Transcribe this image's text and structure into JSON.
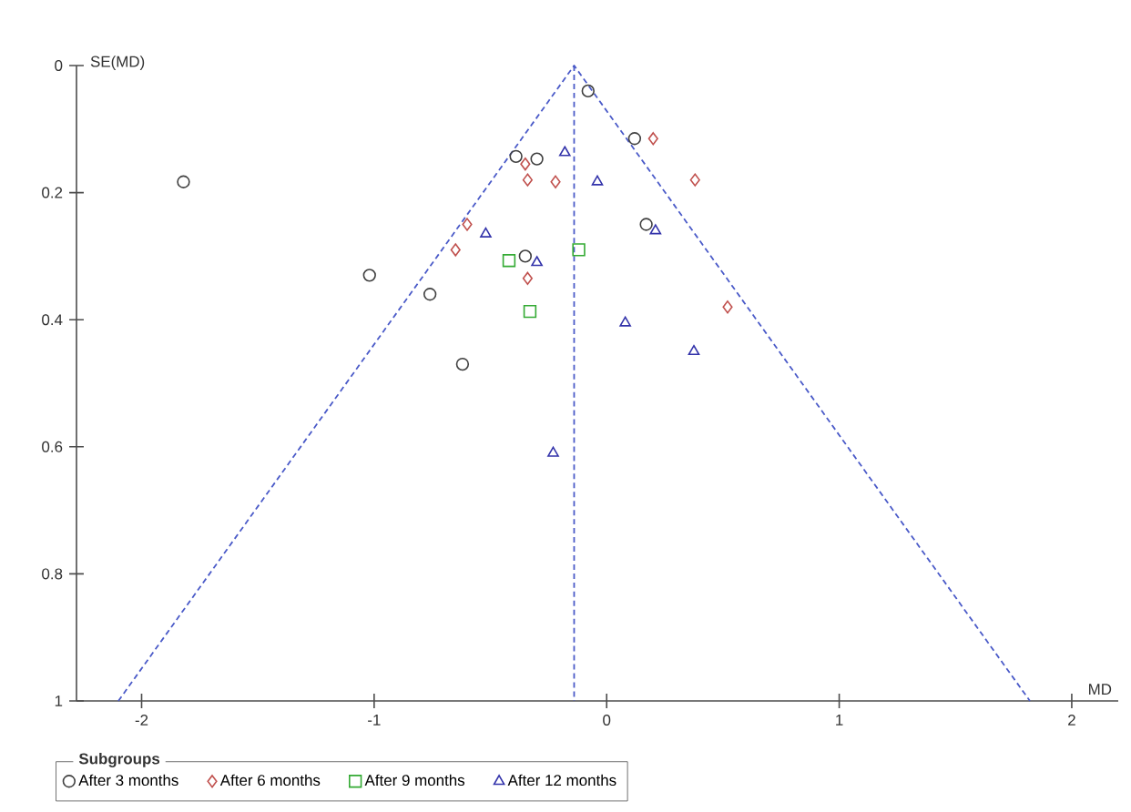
{
  "chart_data": {
    "type": "scatter",
    "xlabel": "MD",
    "ylabel": "SE(MD)",
    "legend_title": "Subgroups",
    "legend": "bottom",
    "xlim": [
      -2.28,
      2.2
    ],
    "ylim": [
      1,
      0
    ],
    "xticks": [
      -2,
      -1,
      0,
      1,
      2
    ],
    "yticks": [
      0,
      0.2,
      0.4,
      0.6,
      0.8,
      1
    ],
    "ref_lines": [
      {
        "axis": "x",
        "value": -0.14,
        "color": "#4a5ac8",
        "line_style": "dashed"
      }
    ],
    "series": [
      {
        "name": "After 3 months",
        "color": "#404040",
        "marker": "circle",
        "x": [
          -1.82,
          -1.02,
          -0.76,
          -0.62,
          -0.39,
          -0.3,
          -0.35,
          -0.08,
          0.12,
          0.17
        ],
        "values": [
          0.183,
          0.33,
          0.36,
          0.47,
          0.143,
          0.147,
          0.3,
          0.04,
          0.115,
          0.25
        ]
      },
      {
        "name": "After 6 months",
        "color": "#c0504d",
        "marker": "diamond",
        "x": [
          -0.35,
          -0.34,
          -0.22,
          -0.6,
          -0.65,
          -0.34,
          0.2,
          0.38,
          0.52
        ],
        "values": [
          0.155,
          0.18,
          0.183,
          0.25,
          0.29,
          0.335,
          0.115,
          0.18,
          0.38
        ]
      },
      {
        "name": "After 9 months",
        "color": "#33aa33",
        "marker": "square",
        "x": [
          -0.42,
          -0.33,
          -0.12
        ],
        "values": [
          0.307,
          0.387,
          0.29
        ]
      },
      {
        "name": "After 12 months",
        "color": "#3333aa",
        "marker": "triangle",
        "x": [
          -0.18,
          -0.52,
          -0.3,
          -0.04,
          0.21,
          0.08,
          0.375,
          -0.23
        ],
        "values": [
          0.137,
          0.265,
          0.31,
          0.183,
          0.26,
          0.405,
          0.45,
          0.61
        ]
      },
      {
        "type": "line",
        "color": "#4a5ac8",
        "line_style": "dashed",
        "marker": "none",
        "x": [
          -2.1,
          -0.14,
          1.82
        ],
        "values": [
          1,
          0,
          1
        ]
      }
    ]
  }
}
